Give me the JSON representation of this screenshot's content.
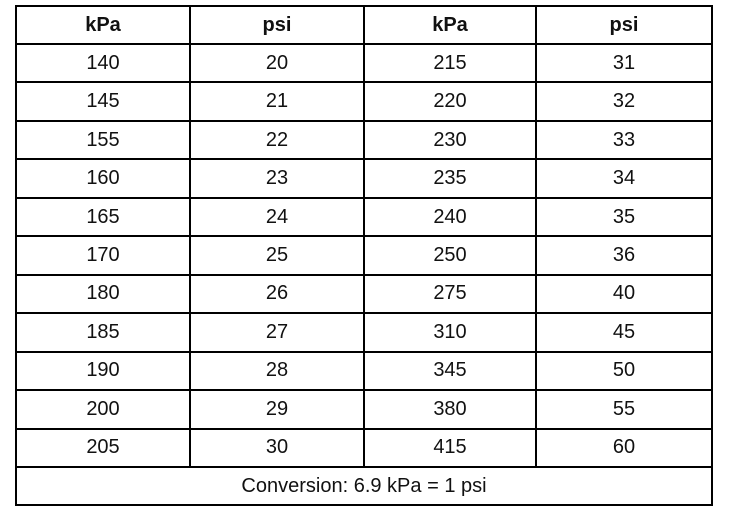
{
  "headers": [
    "kPa",
    "psi",
    "kPa",
    "psi"
  ],
  "rows": [
    [
      "140",
      "20",
      "215",
      "31"
    ],
    [
      "145",
      "21",
      "220",
      "32"
    ],
    [
      "155",
      "22",
      "230",
      "33"
    ],
    [
      "160",
      "23",
      "235",
      "34"
    ],
    [
      "165",
      "24",
      "240",
      "35"
    ],
    [
      "170",
      "25",
      "250",
      "36"
    ],
    [
      "180",
      "26",
      "275",
      "40"
    ],
    [
      "185",
      "27",
      "310",
      "45"
    ],
    [
      "190",
      "28",
      "345",
      "50"
    ],
    [
      "200",
      "29",
      "380",
      "55"
    ],
    [
      "205",
      "30",
      "415",
      "60"
    ]
  ],
  "footer": "Conversion: 6.9 kPa = 1 psi"
}
